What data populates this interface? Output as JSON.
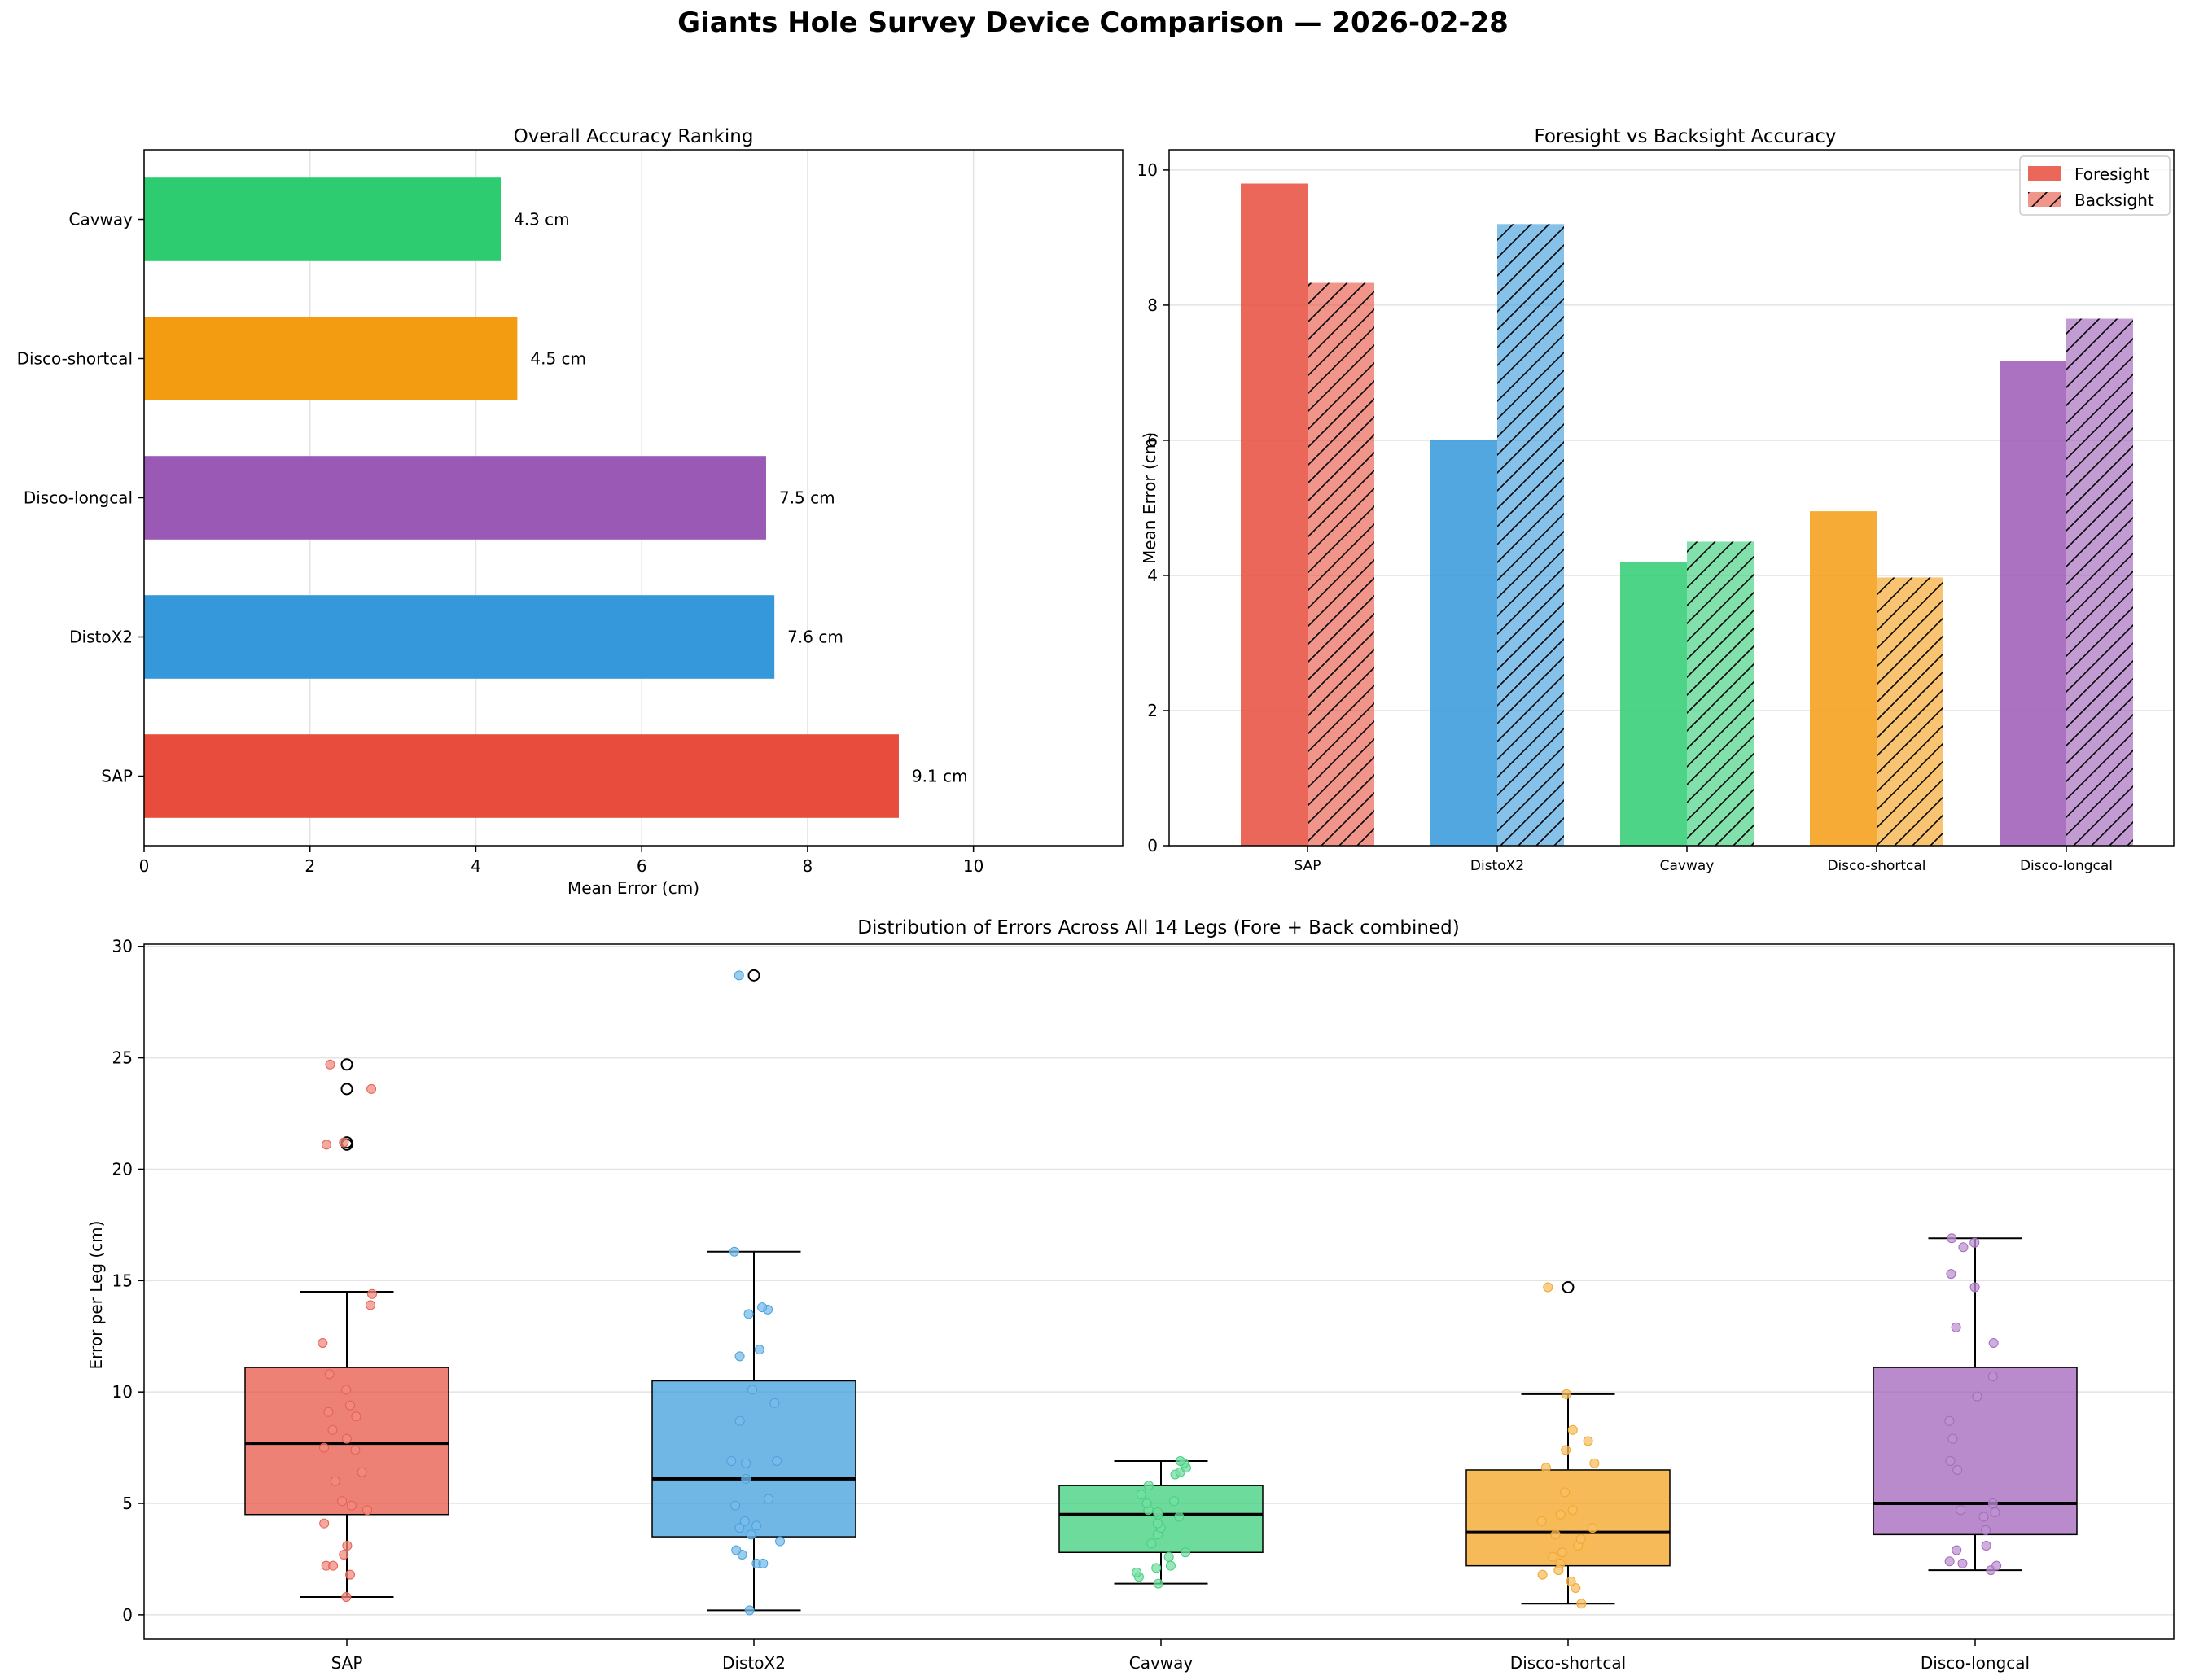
{
  "figure_title": "Giants Hole Survey Device Comparison — 2026-02-28",
  "colors": {
    "SAP": "#e74c3c",
    "DistoX2": "#3498db",
    "Cavway": "#2ecc71",
    "Disco-shortcal": "#f39c12",
    "Disco-longcal": "#9b59b6"
  },
  "chart_data": [
    {
      "type": "bar",
      "orientation": "horizontal",
      "title": "Overall Accuracy Ranking",
      "xlabel": "Mean Error (cm)",
      "ylabel": "",
      "categories": [
        "SAP",
        "DistoX2",
        "Disco-longcal",
        "Disco-shortcal",
        "Cavway"
      ],
      "values": [
        9.1,
        7.6,
        7.5,
        4.5,
        4.3
      ],
      "value_labels": [
        "9.1 cm",
        "7.6 cm",
        "7.5 cm",
        "4.5 cm",
        "4.3 cm"
      ],
      "xlim": [
        0,
        11.8
      ],
      "xticks": [
        0,
        2,
        4,
        6,
        8,
        10
      ],
      "grid": "x"
    },
    {
      "type": "bar",
      "title": "Foresight vs Backsight Accuracy",
      "xlabel": "",
      "ylabel": "Mean Error (cm)",
      "categories": [
        "SAP",
        "DistoX2",
        "Cavway",
        "Disco-shortcal",
        "Disco-longcal"
      ],
      "series": [
        {
          "name": "Foresight",
          "values": [
            9.8,
            6.0,
            4.2,
            4.95,
            7.17
          ],
          "hatch": false
        },
        {
          "name": "Backsight",
          "values": [
            8.33,
            9.2,
            4.5,
            3.97,
            7.8
          ],
          "hatch": true
        }
      ],
      "ylim": [
        0,
        10.3
      ],
      "yticks": [
        0,
        2,
        4,
        6,
        8,
        10
      ],
      "legend": "top-right",
      "grid": "y"
    },
    {
      "type": "box",
      "title": "Distribution of Errors Across All 14 Legs (Fore + Back combined)",
      "xlabel": "",
      "ylabel": "Error per Leg (cm)",
      "ylim": [
        -1.1,
        30.1
      ],
      "yticks": [
        0,
        5,
        10,
        15,
        20,
        25,
        30
      ],
      "grid": "y",
      "boxes": [
        {
          "name": "SAP",
          "whisker_low": 0.8,
          "q1": 4.5,
          "median": 7.7,
          "q3": 11.1,
          "whisker_high": 14.5,
          "outliers": [
            24.7,
            23.6,
            21.2,
            21.1
          ],
          "points": [
            0.8,
            1.8,
            2.2,
            2.2,
            2.7,
            3.1,
            4.1,
            4.7,
            4.9,
            5.1,
            6.0,
            6.4,
            7.4,
            7.5,
            7.9,
            8.3,
            8.9,
            9.1,
            9.4,
            10.1,
            10.8,
            12.2,
            13.9,
            14.4,
            21.1,
            21.2,
            23.6,
            24.7
          ]
        },
        {
          "name": "DistoX2",
          "whisker_low": 0.2,
          "q1": 3.5,
          "median": 6.1,
          "q3": 10.5,
          "whisker_high": 16.3,
          "outliers": [
            28.7
          ],
          "points": [
            0.2,
            2.3,
            2.3,
            2.7,
            2.9,
            3.3,
            3.6,
            3.9,
            4.0,
            4.2,
            4.9,
            5.2,
            6.1,
            6.8,
            6.9,
            6.9,
            8.7,
            9.5,
            10.1,
            11.6,
            11.9,
            13.5,
            13.7,
            13.8,
            16.3,
            28.7
          ]
        },
        {
          "name": "Cavway",
          "whisker_low": 1.4,
          "q1": 2.8,
          "median": 4.5,
          "q3": 5.8,
          "whisker_high": 6.9,
          "outliers": [],
          "points": [
            1.4,
            1.7,
            1.9,
            2.1,
            2.2,
            2.6,
            2.8,
            3.2,
            3.6,
            3.9,
            4.1,
            4.4,
            4.5,
            4.6,
            4.7,
            5.0,
            5.1,
            5.4,
            5.8,
            6.3,
            6.4,
            6.6,
            6.8,
            6.9
          ]
        },
        {
          "name": "Disco-shortcal",
          "whisker_low": 0.5,
          "q1": 2.2,
          "median": 3.7,
          "q3": 6.5,
          "whisker_high": 9.9,
          "outliers": [
            14.7
          ],
          "points": [
            0.5,
            1.2,
            1.5,
            1.8,
            2.0,
            2.3,
            2.6,
            2.8,
            3.1,
            3.4,
            3.6,
            3.9,
            4.2,
            4.5,
            4.7,
            5.5,
            6.6,
            6.8,
            7.4,
            7.8,
            8.3,
            9.9,
            14.7
          ]
        },
        {
          "name": "Disco-longcal",
          "whisker_low": 2.0,
          "q1": 3.6,
          "median": 5.0,
          "q3": 11.1,
          "whisker_high": 16.9,
          "outliers": [],
          "points": [
            2.0,
            2.2,
            2.3,
            2.4,
            2.9,
            3.1,
            3.8,
            4.4,
            4.6,
            4.7,
            5.0,
            6.5,
            6.9,
            7.9,
            8.7,
            9.8,
            10.7,
            12.2,
            12.9,
            14.7,
            15.3,
            16.5,
            16.7,
            16.9
          ]
        }
      ]
    }
  ]
}
